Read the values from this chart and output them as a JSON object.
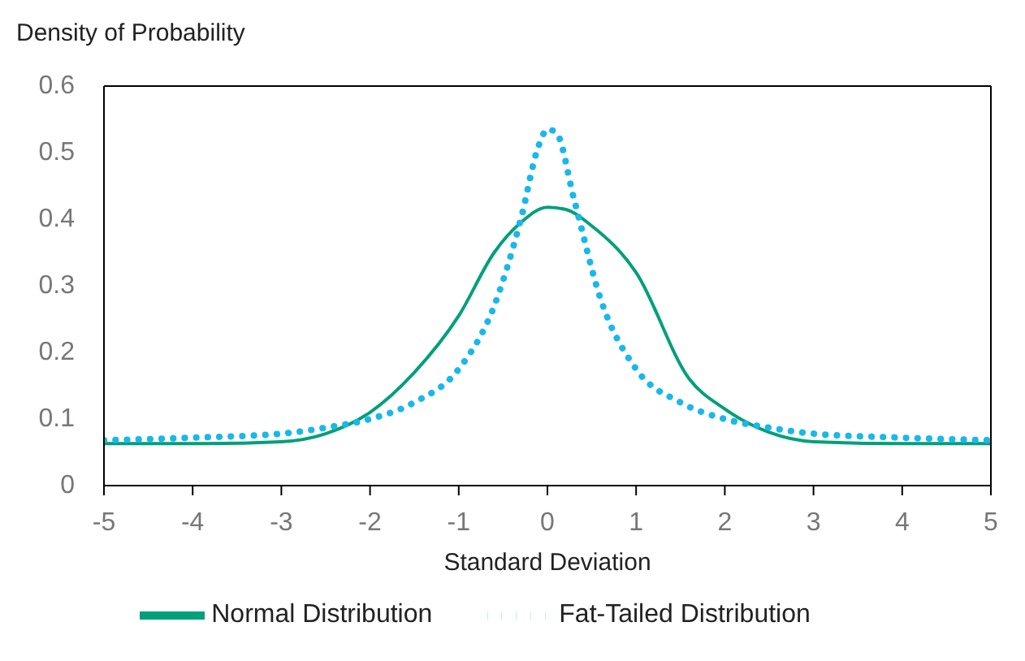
{
  "chart_data": {
    "type": "line",
    "ylabel": "Density of Probability",
    "xlabel": "Standard Deviation",
    "xlim": [
      -5,
      5
    ],
    "xticks": [
      -5,
      -4,
      -3,
      -2,
      -1,
      0,
      1,
      2,
      3,
      4,
      5
    ],
    "ylim": [
      0,
      0.6
    ],
    "yticks": [
      0,
      0.1,
      0.2,
      0.3,
      0.4,
      0.5,
      0.6
    ],
    "grid": false,
    "legend": "bottom",
    "marker": "none",
    "series": [
      {
        "name": "Normal Distribution",
        "color": "#00a07a",
        "line_style": "solid",
        "x": [
          -5,
          -4,
          -3,
          -2.5,
          -2,
          -1.5,
          -1,
          -0.6,
          -0.3,
          0,
          0.2,
          0.5,
          1,
          1.6,
          2,
          2.5,
          3,
          4,
          5
        ],
        "values": [
          0.063,
          0.063,
          0.066,
          0.078,
          0.11,
          0.17,
          0.255,
          0.35,
          0.395,
          0.418,
          0.415,
          0.39,
          0.32,
          0.16,
          0.115,
          0.08,
          0.066,
          0.063,
          0.063
        ]
      },
      {
        "name": "Fat-Tailed Distribution",
        "color": "#1ab8e8",
        "line_style": "dotted",
        "x": [
          -5,
          -4,
          -3,
          -2.5,
          -2,
          -1.5,
          -1,
          -0.6,
          -0.3,
          -0.1,
          0,
          0.1,
          0.3,
          0.6,
          1,
          1.5,
          2,
          2.5,
          3,
          4,
          5
        ],
        "values": [
          0.068,
          0.072,
          0.078,
          0.087,
          0.1,
          0.125,
          0.175,
          0.27,
          0.4,
          0.51,
          0.535,
          0.53,
          0.43,
          0.28,
          0.175,
          0.125,
          0.1,
          0.087,
          0.078,
          0.072,
          0.068
        ]
      }
    ]
  }
}
